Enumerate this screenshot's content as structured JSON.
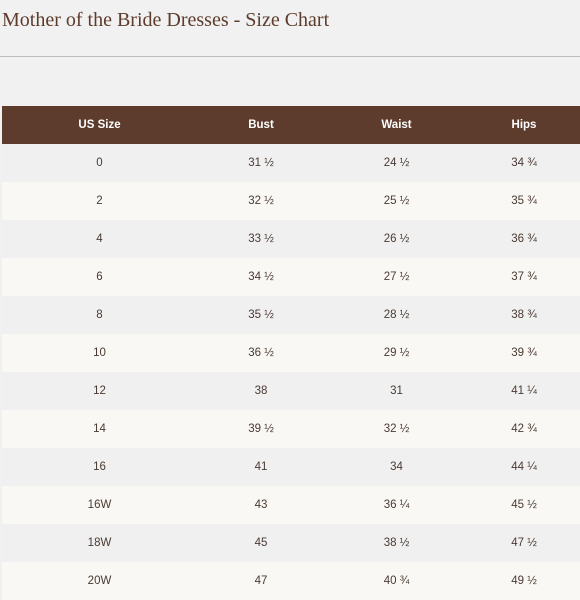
{
  "page": {
    "title": "Mother of the Bride Dresses - Size Chart"
  },
  "colors": {
    "accent": "#5e3c2d",
    "row_alt_light": "#faf8f4",
    "row_alt_gray": "#f0f0f0"
  },
  "table": {
    "headers": {
      "size": "US Size",
      "bust": "Bust",
      "waist": "Waist",
      "hips": "Hips"
    },
    "rows": [
      {
        "size": "0",
        "bust": "31 ½",
        "waist": "24 ½",
        "hips": "34 ¾"
      },
      {
        "size": "2",
        "bust": "32 ½",
        "waist": "25 ½",
        "hips": "35 ¾"
      },
      {
        "size": "4",
        "bust": "33 ½",
        "waist": "26 ½",
        "hips": "36 ¾"
      },
      {
        "size": "6",
        "bust": "34 ½",
        "waist": "27 ½",
        "hips": "37 ¾"
      },
      {
        "size": "8",
        "bust": "35 ½",
        "waist": "28 ½",
        "hips": "38 ¾"
      },
      {
        "size": "10",
        "bust": "36 ½",
        "waist": "29 ½",
        "hips": "39 ¾"
      },
      {
        "size": "12",
        "bust": "38",
        "waist": "31",
        "hips": "41 ¼"
      },
      {
        "size": "14",
        "bust": "39 ½",
        "waist": "32 ½",
        "hips": "42 ¾"
      },
      {
        "size": "16",
        "bust": "41",
        "waist": "34",
        "hips": "44 ¼"
      },
      {
        "size": "16W",
        "bust": "43",
        "waist": "36 ¼",
        "hips": "45 ½"
      },
      {
        "size": "18W",
        "bust": "45",
        "waist": "38 ½",
        "hips": "47 ½"
      },
      {
        "size": "20W",
        "bust": "47",
        "waist": "40 ¾",
        "hips": "49 ½"
      }
    ]
  }
}
